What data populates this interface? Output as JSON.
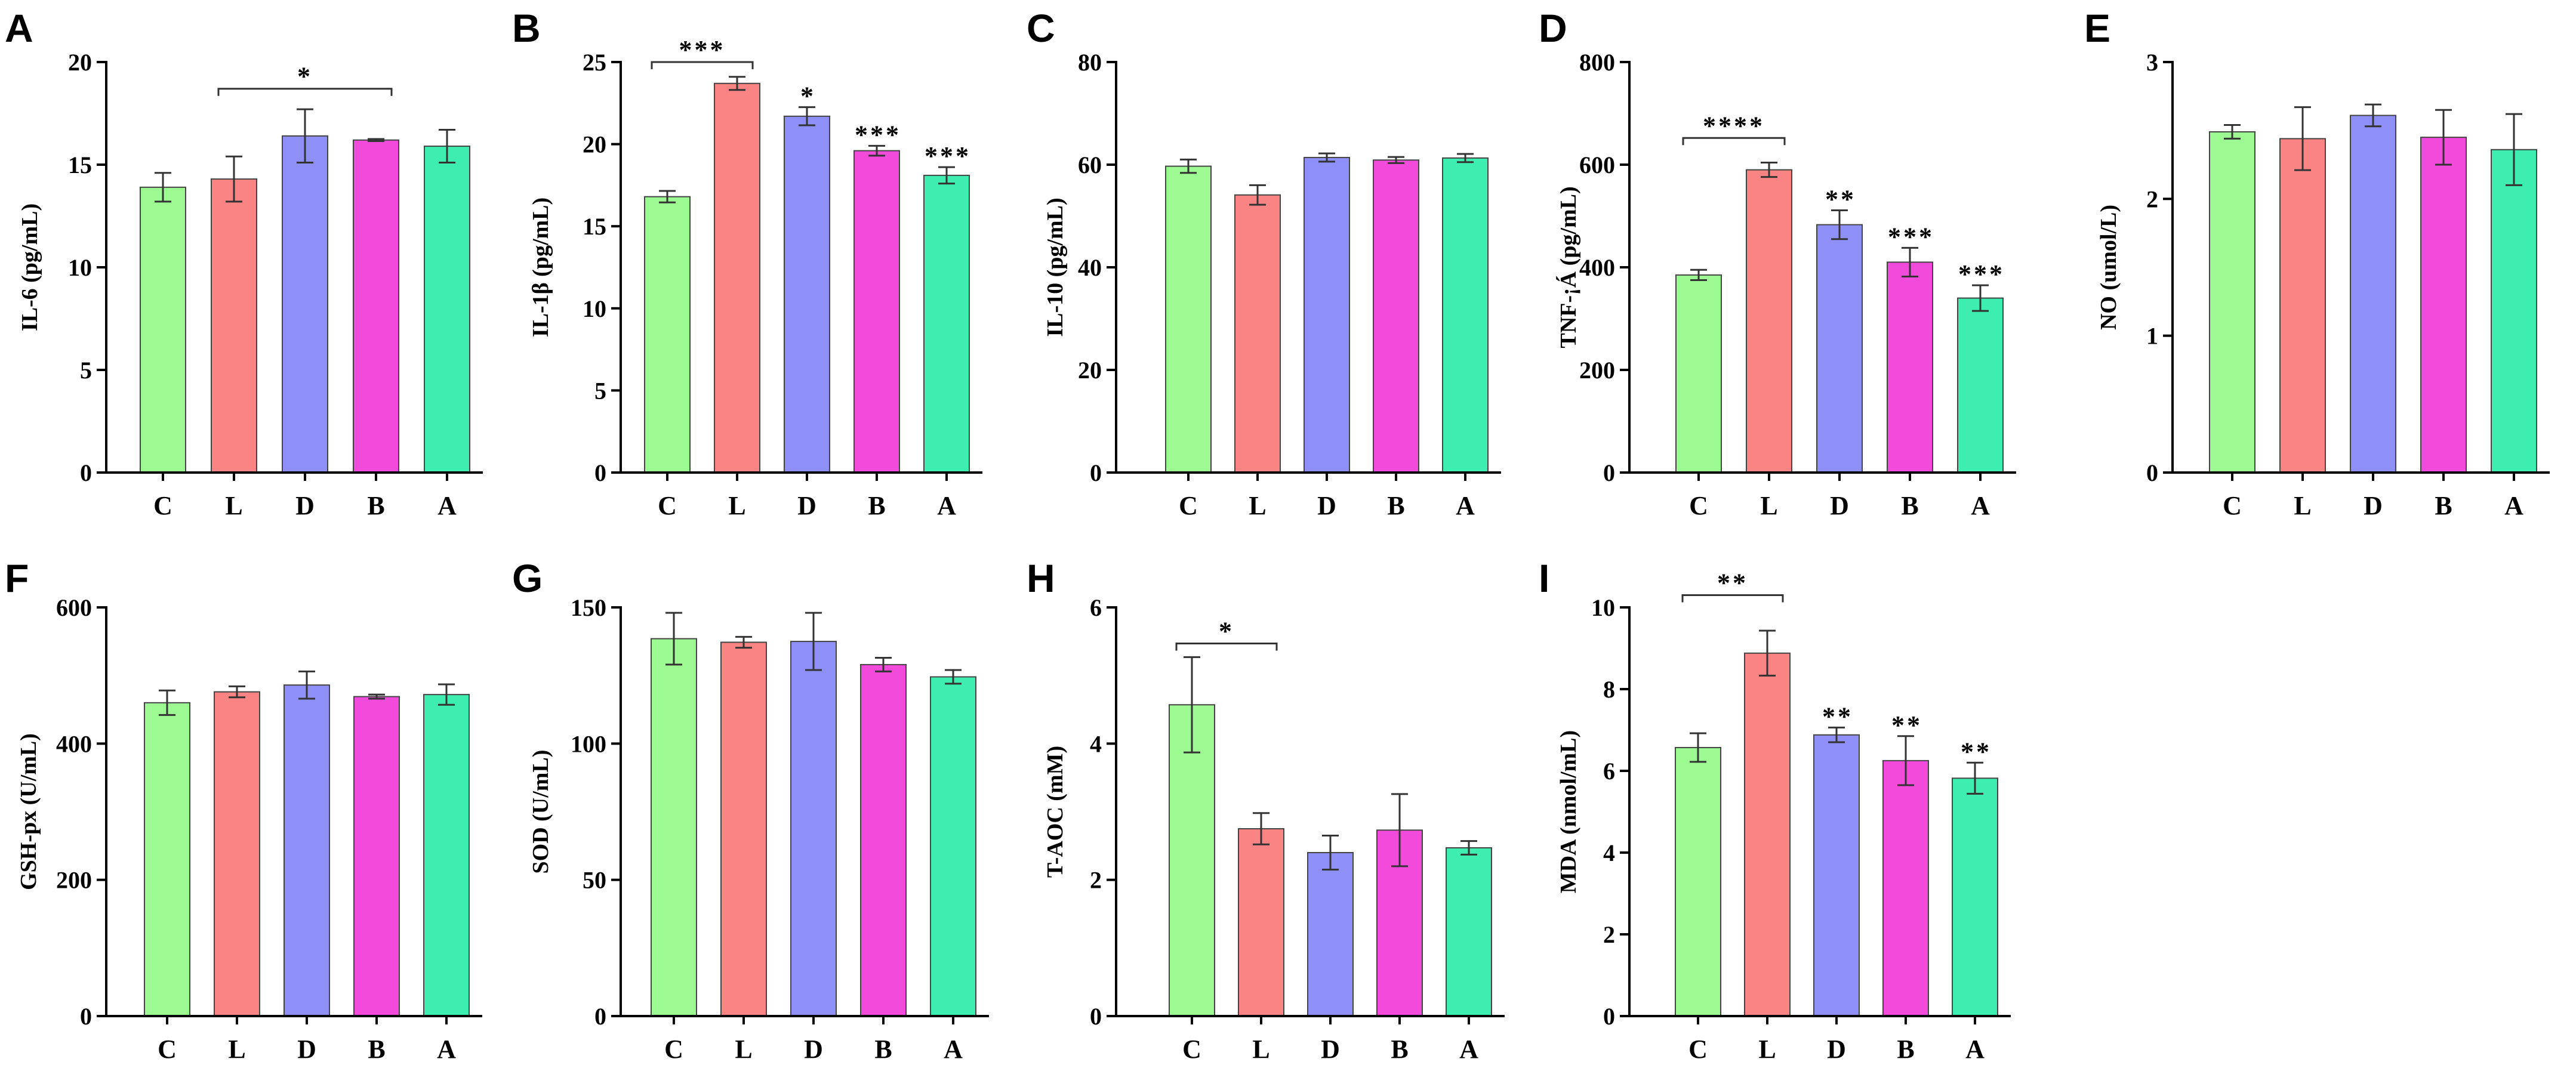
{
  "colors": {
    "C": "#9dfa93",
    "L": "#fa8484",
    "D": "#8e8ff7",
    "B": "#f24bdc",
    "A": "#3deeb0"
  },
  "chart_data": [
    {
      "type": "bar",
      "panel": "A",
      "title": "",
      "xlabel": "",
      "ylabel": "IL-6 (pg/mL)",
      "categories": [
        "C",
        "L",
        "D",
        "B",
        "A"
      ],
      "values": [
        13.9,
        14.3,
        16.4,
        16.2,
        15.9
      ],
      "errors": [
        0.7,
        1.1,
        1.3,
        0.05,
        0.8
      ],
      "ylim": [
        0,
        20
      ],
      "yticks": [
        0,
        5,
        10,
        15,
        20
      ],
      "bar_annotations": [
        "",
        "",
        "",
        "",
        ""
      ],
      "brackets": [
        {
          "from": "L",
          "to": "B",
          "y": 18.7,
          "label": "*"
        }
      ]
    },
    {
      "type": "bar",
      "panel": "B",
      "title": "",
      "xlabel": "",
      "ylabel": "IL-1β (pg/mL)",
      "categories": [
        "C",
        "L",
        "D",
        "B",
        "A"
      ],
      "values": [
        16.8,
        23.7,
        21.7,
        19.6,
        18.1
      ],
      "errors": [
        0.35,
        0.4,
        0.55,
        0.3,
        0.5
      ],
      "ylim": [
        0,
        25
      ],
      "yticks": [
        0,
        5,
        10,
        15,
        20,
        25
      ],
      "bar_annotations": [
        "",
        "",
        "*",
        "***",
        "***"
      ],
      "brackets": [
        {
          "from": "C",
          "to": "L",
          "y": 25.0,
          "label": "***"
        }
      ]
    },
    {
      "type": "bar",
      "panel": "C",
      "title": "",
      "xlabel": "",
      "ylabel": "IL-10  (pg/mL)",
      "categories": [
        "C",
        "L",
        "D",
        "B",
        "A"
      ],
      "values": [
        59.7,
        54.1,
        61.4,
        60.9,
        61.3
      ],
      "errors": [
        1.3,
        1.9,
        0.8,
        0.6,
        0.8
      ],
      "ylim": [
        0,
        80
      ],
      "yticks": [
        0,
        20,
        40,
        60,
        80
      ],
      "bar_annotations": [
        "",
        "",
        "",
        "",
        ""
      ],
      "brackets": []
    },
    {
      "type": "bar",
      "panel": "D",
      "title": "",
      "xlabel": "",
      "ylabel": "TNF-¡Á (pg/mL)",
      "categories": [
        "C",
        "L",
        "D",
        "B",
        "A"
      ],
      "values": [
        385,
        590,
        483,
        410,
        340
      ],
      "errors": [
        10,
        14,
        28,
        28,
        25
      ],
      "ylim": [
        0,
        800
      ],
      "yticks": [
        0,
        200,
        400,
        600,
        800
      ],
      "bar_annotations": [
        "",
        "",
        "**",
        "***",
        "***"
      ],
      "brackets": [
        {
          "from": "C",
          "to": "L",
          "y": 652,
          "label": "****"
        }
      ]
    },
    {
      "type": "bar",
      "panel": "E",
      "title": "",
      "xlabel": "",
      "ylabel": "NO (umol/L)",
      "categories": [
        "C",
        "L",
        "D",
        "B",
        "A"
      ],
      "values": [
        2.49,
        2.44,
        2.61,
        2.45,
        2.36
      ],
      "errors": [
        0.05,
        0.23,
        0.08,
        0.2,
        0.26
      ],
      "ylim": [
        0,
        3
      ],
      "yticks": [
        0,
        1,
        2,
        3
      ],
      "bar_annotations": [
        "",
        "",
        "",
        "",
        ""
      ],
      "brackets": []
    },
    {
      "type": "bar",
      "panel": "F",
      "title": "",
      "xlabel": "",
      "ylabel": "GSH-px (U/mL)",
      "categories": [
        "C",
        "L",
        "D",
        "B",
        "A"
      ],
      "values": [
        460,
        476,
        486,
        469,
        472
      ],
      "errors": [
        18,
        8,
        20,
        3,
        15
      ],
      "ylim": [
        0,
        600
      ],
      "yticks": [
        0,
        200,
        400,
        600
      ],
      "bar_annotations": [
        "",
        "",
        "",
        "",
        ""
      ],
      "brackets": []
    },
    {
      "type": "bar",
      "panel": "G",
      "title": "",
      "xlabel": "",
      "ylabel": "SOD (U/mL)",
      "categories": [
        "C",
        "L",
        "D",
        "B",
        "A"
      ],
      "values": [
        138.5,
        137.2,
        137.5,
        129.0,
        124.5
      ],
      "errors": [
        9.5,
        2.0,
        10.5,
        2.5,
        2.5
      ],
      "ylim": [
        0,
        150
      ],
      "yticks": [
        0,
        50,
        100,
        150
      ],
      "bar_annotations": [
        "",
        "",
        "",
        "",
        ""
      ],
      "brackets": []
    },
    {
      "type": "bar",
      "panel": "H",
      "title": "",
      "xlabel": "",
      "ylabel": "T-AOC (mM)",
      "categories": [
        "C",
        "L",
        "D",
        "B",
        "A"
      ],
      "values": [
        4.57,
        2.75,
        2.4,
        2.73,
        2.47
      ],
      "errors": [
        0.7,
        0.23,
        0.25,
        0.53,
        0.1
      ],
      "ylim": [
        0,
        6
      ],
      "yticks": [
        0,
        2,
        4,
        6
      ],
      "bar_annotations": [
        "",
        "",
        "",
        "",
        ""
      ],
      "brackets": [
        {
          "from": "C",
          "to": "L",
          "y": 5.47,
          "label": "*"
        }
      ]
    },
    {
      "type": "bar",
      "panel": "I",
      "title": "",
      "xlabel": "",
      "ylabel": "MDA (nmol/mL)",
      "categories": [
        "C",
        "L",
        "D",
        "B",
        "A"
      ],
      "values": [
        6.57,
        8.88,
        6.88,
        6.25,
        5.82
      ],
      "errors": [
        0.35,
        0.55,
        0.18,
        0.6,
        0.38
      ],
      "ylim": [
        0,
        10
      ],
      "yticks": [
        0,
        2,
        4,
        6,
        8,
        10
      ],
      "bar_annotations": [
        "",
        "",
        "**",
        "**",
        "**"
      ],
      "brackets": [
        {
          "from": "C",
          "to": "L",
          "y": 10.3,
          "label": "**"
        }
      ]
    }
  ]
}
